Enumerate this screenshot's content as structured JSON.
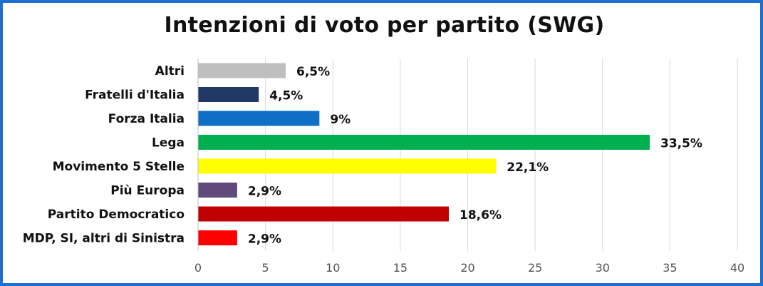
{
  "chart_data": {
    "type": "bar",
    "orientation": "horizontal",
    "title": "Intenzioni di voto per partito (SWG)",
    "categories": [
      "Altri",
      "Fratelli d'Italia",
      "Forza Italia",
      "Lega",
      "Movimento 5 Stelle",
      "Più Europa",
      "Partito Democratico",
      "MDP, SI, altri di Sinistra"
    ],
    "values": [
      6.5,
      4.5,
      9,
      33.5,
      22.1,
      2.9,
      18.6,
      2.9
    ],
    "data_labels": [
      "6,5%",
      "4,5%",
      "9%",
      "33,5%",
      "22,1%",
      "2,9%",
      "18,6%",
      "2,9%"
    ],
    "colors": [
      "#bfbfbf",
      "#1f3864",
      "#0f6fc6",
      "#00b050",
      "#ffff00",
      "#604a7b",
      "#c00000",
      "#ff0000"
    ],
    "xlim": [
      0,
      40
    ],
    "xticks": [
      0,
      5,
      10,
      15,
      20,
      25,
      30,
      35,
      40
    ],
    "grid": "vertical",
    "legend": "none",
    "xlabel": "",
    "ylabel": ""
  },
  "style": {
    "border_color": "#1f6fd1",
    "grid_color": "#d9d9d9",
    "axis_color": "#bfbfbf"
  }
}
